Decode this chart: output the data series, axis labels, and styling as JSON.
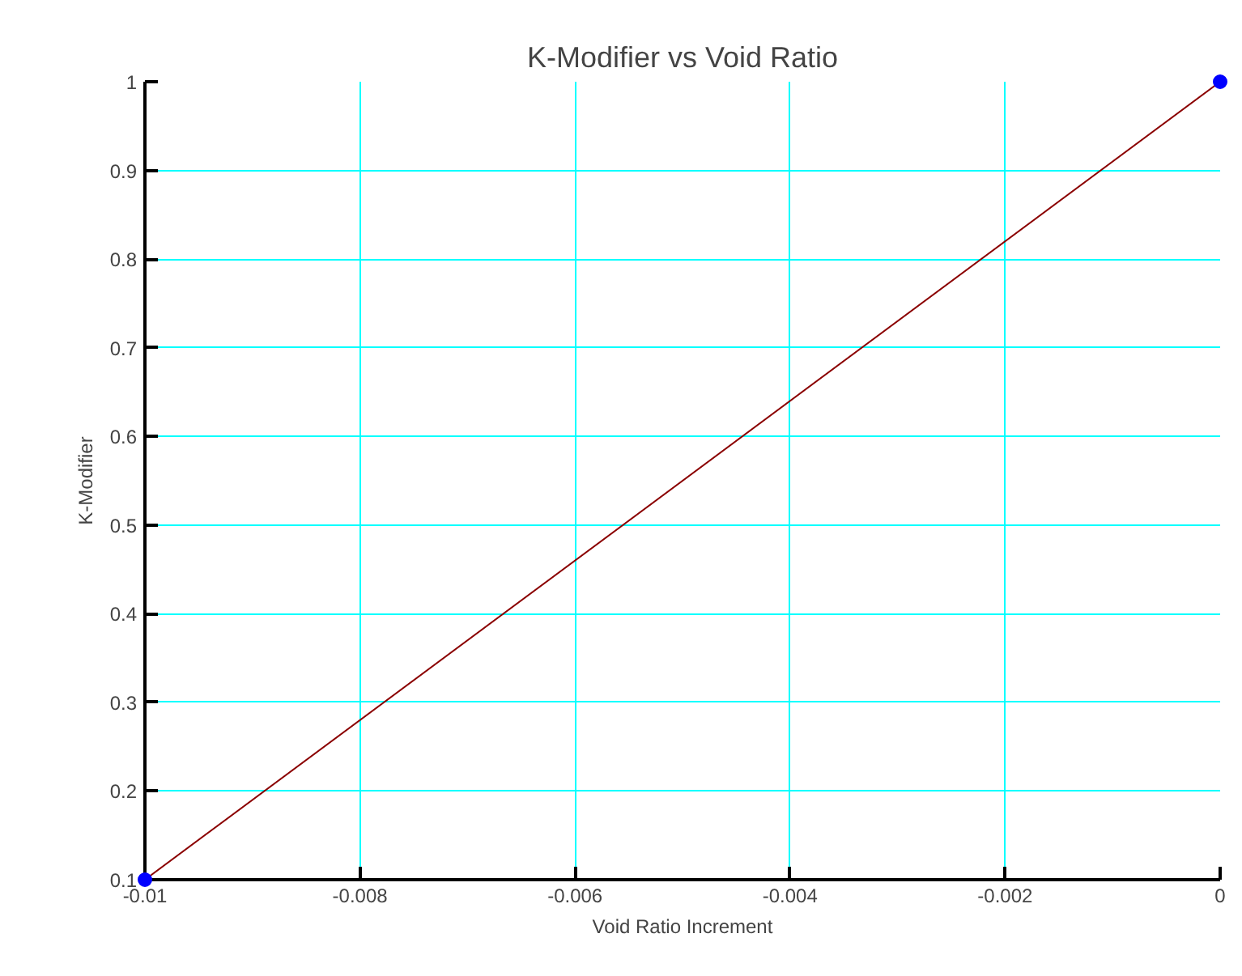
{
  "chart_data": {
    "type": "line",
    "title": "K-Modifier vs Void Ratio",
    "xlabel": "Void Ratio Increment",
    "ylabel": "K-Modifier",
    "x": [
      -0.01,
      0
    ],
    "series": [
      {
        "color": "#8b0000",
        "values": [
          0.1,
          1
        ],
        "marker": "none"
      },
      {
        "type": "scatter",
        "color": "#0000ff",
        "values": [
          0.1,
          1
        ],
        "marker": "circle"
      }
    ],
    "xlim": [
      -0.01,
      0
    ],
    "ylim": [
      0.1,
      1
    ],
    "xticks": [
      -0.01,
      -0.008,
      -0.006,
      -0.004,
      -0.002,
      0
    ],
    "yticks": [
      0.1,
      0.2,
      0.3,
      0.4,
      0.5,
      0.6,
      0.7,
      0.8,
      0.9,
      1
    ],
    "grid": true
  }
}
